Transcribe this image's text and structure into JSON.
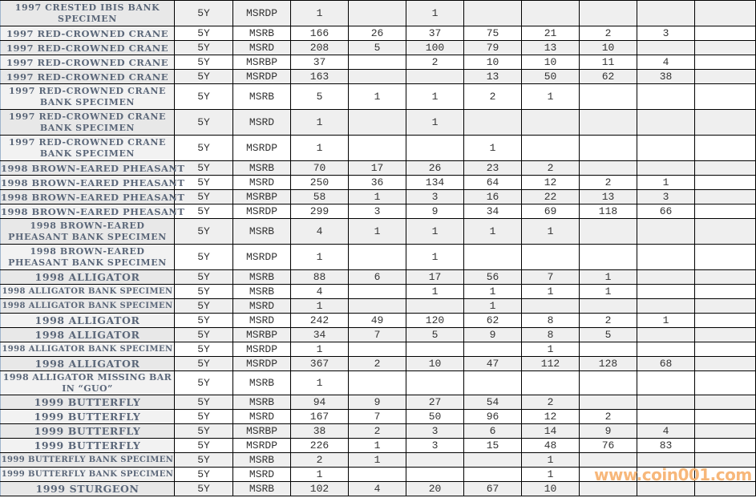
{
  "table": {
    "rows": [
      {
        "name": "1997 CRESTED IBIS BANK SPECIMEN",
        "term": "5Y",
        "type": "MSRDP",
        "total": "1",
        "grades": [
          "",
          "1",
          "",
          "",
          "",
          "",
          ""
        ]
      },
      {
        "name": "1997 RED-CROWNED CRANE",
        "term": "5Y",
        "type": "MSRB",
        "total": "166",
        "grades": [
          "26",
          "37",
          "75",
          "21",
          "2",
          "3",
          ""
        ]
      },
      {
        "name": "1997 RED-CROWNED CRANE",
        "term": "5Y",
        "type": "MSRD",
        "total": "208",
        "grades": [
          "5",
          "100",
          "79",
          "13",
          "10",
          "",
          ""
        ]
      },
      {
        "name": "1997 RED-CROWNED CRANE",
        "term": "5Y",
        "type": "MSRBP",
        "total": "37",
        "grades": [
          "",
          "2",
          "10",
          "10",
          "11",
          "4",
          ""
        ]
      },
      {
        "name": "1997 RED-CROWNED CRANE",
        "term": "5Y",
        "type": "MSRDP",
        "total": "163",
        "grades": [
          "",
          "",
          "13",
          "50",
          "62",
          "38",
          ""
        ]
      },
      {
        "name": "1997 RED-CROWNED CRANE BANK SPECIMEN",
        "term": "5Y",
        "type": "MSRB",
        "total": "5",
        "grades": [
          "1",
          "1",
          "2",
          "1",
          "",
          "",
          ""
        ]
      },
      {
        "name": "1997 RED-CROWNED CRANE BANK SPECIMEN",
        "term": "5Y",
        "type": "MSRD",
        "total": "1",
        "grades": [
          "",
          "1",
          "",
          "",
          "",
          "",
          ""
        ]
      },
      {
        "name": "1997 RED-CROWNED CRANE BANK SPECIMEN",
        "term": "5Y",
        "type": "MSRDP",
        "total": "1",
        "grades": [
          "",
          "",
          "1",
          "",
          "",
          "",
          ""
        ]
      },
      {
        "name": "1998 BROWN-EARED PHEASANT",
        "term": "5Y",
        "type": "MSRB",
        "total": "70",
        "grades": [
          "17",
          "26",
          "23",
          "2",
          "",
          "",
          ""
        ]
      },
      {
        "name": "1998 BROWN-EARED PHEASANT",
        "term": "5Y",
        "type": "MSRD",
        "total": "250",
        "grades": [
          "36",
          "134",
          "64",
          "12",
          "2",
          "1",
          ""
        ]
      },
      {
        "name": "1998 BROWN-EARED PHEASANT",
        "term": "5Y",
        "type": "MSRBP",
        "total": "58",
        "grades": [
          "1",
          "3",
          "16",
          "22",
          "13",
          "3",
          ""
        ]
      },
      {
        "name": "1998 BROWN-EARED PHEASANT",
        "term": "5Y",
        "type": "MSRDP",
        "total": "299",
        "grades": [
          "3",
          "9",
          "34",
          "69",
          "118",
          "66",
          ""
        ]
      },
      {
        "name": "1998 BROWN-EARED PHEASANT BANK SPECIMEN",
        "term": "5Y",
        "type": "MSRB",
        "total": "4",
        "grades": [
          "1",
          "1",
          "1",
          "1",
          "",
          "",
          ""
        ]
      },
      {
        "name": "1998 BROWN-EARED PHEASANT BANK SPECIMEN",
        "term": "5Y",
        "type": "MSRDP",
        "total": "1",
        "grades": [
          "",
          "1",
          "",
          "",
          "",
          "",
          ""
        ]
      },
      {
        "name": "1998 ALLIGATOR",
        "term": "5Y",
        "type": "MSRB",
        "total": "88",
        "grades": [
          "6",
          "17",
          "56",
          "7",
          "1",
          "",
          ""
        ]
      },
      {
        "name": "1998 ALLIGATOR BANK SPECIMEN",
        "term": "5Y",
        "type": "MSRB",
        "total": "4",
        "grades": [
          "",
          "1",
          "1",
          "1",
          "1",
          "",
          ""
        ]
      },
      {
        "name": "1998 ALLIGATOR BANK SPECIMEN",
        "term": "5Y",
        "type": "MSRD",
        "total": "1",
        "grades": [
          "",
          "",
          "1",
          "",
          "",
          "",
          ""
        ]
      },
      {
        "name": "1998 ALLIGATOR",
        "term": "5Y",
        "type": "MSRD",
        "total": "242",
        "grades": [
          "49",
          "120",
          "62",
          "8",
          "2",
          "1",
          ""
        ]
      },
      {
        "name": "1998 ALLIGATOR",
        "term": "5Y",
        "type": "MSRBP",
        "total": "34",
        "grades": [
          "7",
          "5",
          "9",
          "8",
          "5",
          "",
          ""
        ]
      },
      {
        "name": "1998 ALLIGATOR BANK SPECIMEN",
        "term": "5Y",
        "type": "MSRDP",
        "total": "1",
        "grades": [
          "",
          "",
          "",
          "1",
          "",
          "",
          ""
        ]
      },
      {
        "name": "1998 ALLIGATOR",
        "term": "5Y",
        "type": "MSRDP",
        "total": "367",
        "grades": [
          "2",
          "10",
          "47",
          "112",
          "128",
          "68",
          ""
        ]
      },
      {
        "name": "1998 ALLIGATOR MISSING BAR IN “GUO”",
        "term": "5Y",
        "type": "MSRB",
        "total": "1",
        "grades": [
          "",
          "",
          "",
          "",
          "",
          "",
          ""
        ]
      },
      {
        "name": "1999 BUTTERFLY",
        "term": "5Y",
        "type": "MSRB",
        "total": "94",
        "grades": [
          "9",
          "27",
          "54",
          "2",
          "",
          "",
          ""
        ]
      },
      {
        "name": "1999 BUTTERFLY",
        "term": "5Y",
        "type": "MSRD",
        "total": "167",
        "grades": [
          "7",
          "50",
          "96",
          "12",
          "2",
          "",
          ""
        ]
      },
      {
        "name": "1999 BUTTERFLY",
        "term": "5Y",
        "type": "MSRBP",
        "total": "38",
        "grades": [
          "2",
          "3",
          "6",
          "14",
          "9",
          "4",
          ""
        ]
      },
      {
        "name": "1999 BUTTERFLY",
        "term": "5Y",
        "type": "MSRDP",
        "total": "226",
        "grades": [
          "1",
          "3",
          "15",
          "48",
          "76",
          "83",
          ""
        ]
      },
      {
        "name": "1999 BUTTERFLY BANK SPECIMEN",
        "term": "5Y",
        "type": "MSRB",
        "total": "2",
        "grades": [
          "1",
          "",
          "",
          "1",
          "",
          "",
          ""
        ]
      },
      {
        "name": "1999 BUTTERFLY BANK SPECIMEN",
        "term": "5Y",
        "type": "MSRD",
        "total": "1",
        "grades": [
          "",
          "",
          "",
          "1",
          "",
          "",
          ""
        ]
      },
      {
        "name": "1999 STURGEON",
        "term": "5Y",
        "type": "MSRB",
        "total": "102",
        "grades": [
          "4",
          "20",
          "67",
          "10",
          "",
          "",
          ""
        ]
      }
    ]
  },
  "watermark": "www.coin001.com",
  "colors": {
    "name_text": "#5b6779",
    "stripe": "#efefef",
    "watermark": "#f7b77a"
  }
}
